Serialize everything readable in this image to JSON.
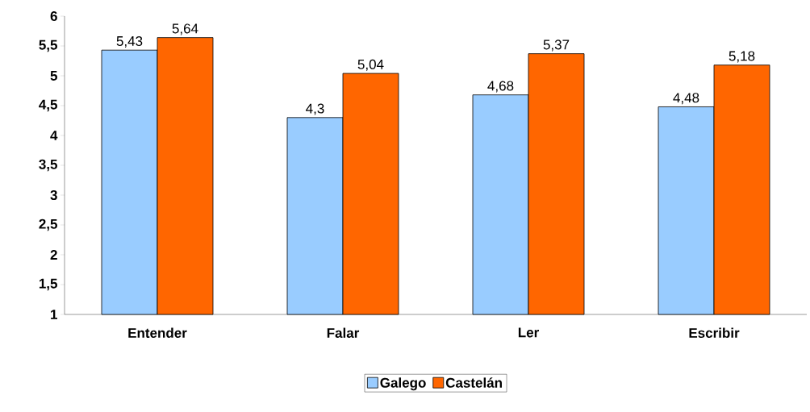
{
  "chart_data": {
    "type": "bar",
    "categories": [
      "Entender",
      "Falar",
      "Ler",
      "Escribir"
    ],
    "series": [
      {
        "name": "Galego",
        "color": "#99ccff",
        "values": [
          5.43,
          4.3,
          4.68,
          4.48
        ],
        "value_labels": [
          "5,43",
          "4,3",
          "4,68",
          "4,48"
        ]
      },
      {
        "name": "Castelán",
        "color": "#ff6600",
        "values": [
          5.64,
          5.04,
          5.37,
          5.18
        ],
        "value_labels": [
          "5,64",
          "5,04",
          "5,37",
          "5,18"
        ]
      }
    ],
    "ylim": [
      1,
      6
    ],
    "yticks": [
      1,
      {
        "value": 1.5,
        "label": "1,5"
      },
      2,
      {
        "value": 2.5,
        "label": "2,5"
      },
      3,
      {
        "value": 3.5,
        "label": "3,5"
      },
      4,
      {
        "value": 4.5,
        "label": "4,5"
      },
      5,
      {
        "value": 5.5,
        "label": "5,5"
      },
      6
    ],
    "grid": false,
    "legend": "bottom"
  }
}
